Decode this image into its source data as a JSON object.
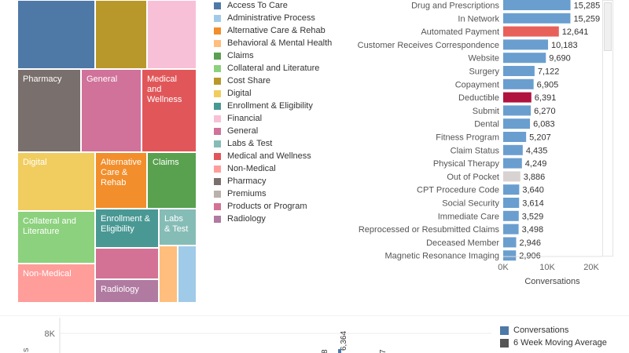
{
  "treemap": {
    "tiles": [
      {
        "label": "",
        "color": "#4e79a7"
      },
      {
        "label": "",
        "color": "#b9982b"
      },
      {
        "label": "",
        "color": "#f7c0d6"
      },
      {
        "label": "Pharmacy",
        "color": "#796f6c"
      },
      {
        "label": "General",
        "color": "#d0729a"
      },
      {
        "label": "Medical and Wellness",
        "color": "#e15759"
      },
      {
        "label": "Digital",
        "color": "#f1cd5f"
      },
      {
        "label": "Alternative Care & Rehab",
        "color": "#f28e2b"
      },
      {
        "label": "Claims",
        "color": "#59a14f"
      },
      {
        "label": "Collateral and Literature",
        "color": "#8cd17d"
      },
      {
        "label": "Enrollment & Eligibility",
        "color": "#499894"
      },
      {
        "label": "Labs & Test",
        "color": "#86bcb6"
      },
      {
        "label": "Non-Medical",
        "color": "#ff9d9a"
      },
      {
        "label": "",
        "color": "#d37295"
      },
      {
        "label": "Radiology",
        "color": "#b07aa1"
      },
      {
        "label": "",
        "color": "#ffbe7d"
      },
      {
        "label": "",
        "color": "#a0cbe8"
      }
    ]
  },
  "legend": {
    "items": [
      {
        "label": "Access To Care",
        "color": "#4e79a7"
      },
      {
        "label": "Administrative Process",
        "color": "#a0cbe8"
      },
      {
        "label": "Alternative Care & Rehab",
        "color": "#f28e2b"
      },
      {
        "label": "Behavioral & Mental Health",
        "color": "#ffbe7d"
      },
      {
        "label": "Claims",
        "color": "#59a14f"
      },
      {
        "label": "Collateral and Literature",
        "color": "#8cd17d"
      },
      {
        "label": "Cost Share",
        "color": "#b9982b"
      },
      {
        "label": "Digital",
        "color": "#f1cd5f"
      },
      {
        "label": "Enrollment & Eligibility",
        "color": "#499894"
      },
      {
        "label": "Financial",
        "color": "#f7c0d6"
      },
      {
        "label": "General",
        "color": "#d0729a"
      },
      {
        "label": "Labs & Test",
        "color": "#86bcb6"
      },
      {
        "label": "Medical and Wellness",
        "color": "#e15759"
      },
      {
        "label": "Non-Medical",
        "color": "#ff9d9a"
      },
      {
        "label": "Pharmacy",
        "color": "#796f6c"
      },
      {
        "label": "Premiums",
        "color": "#bab0ac"
      },
      {
        "label": "Products or Program",
        "color": "#d37295"
      },
      {
        "label": "Radiology",
        "color": "#b07aa1"
      }
    ]
  },
  "chart_data": [
    {
      "type": "bar",
      "orientation": "horizontal",
      "categories": [
        "Drug and Prescriptions",
        "In Network",
        "Automated Payment",
        "Customer Receives Correspondence",
        "Website",
        "Surgery",
        "Copayment",
        "Deductible",
        "Submit",
        "Dental",
        "Fitness Program",
        "Claim Status",
        "Physical Therapy",
        "Out of Pocket",
        "CPT Procedure Code",
        "Social Security",
        "Immediate Care",
        "Reprocessed or Resubmitted Claims",
        "Deceased Member",
        "Magnetic Resonance Imaging"
      ],
      "values": [
        15285,
        15259,
        12641,
        10183,
        9690,
        7122,
        6905,
        6391,
        6270,
        6083,
        5207,
        4435,
        4249,
        3886,
        3640,
        3614,
        3529,
        3498,
        2946,
        2906
      ],
      "value_labels": [
        "15,285",
        "15,259",
        "12,641",
        "10,183",
        "9,690",
        "7,122",
        "6,905",
        "6,391",
        "6,270",
        "6,083",
        "5,207",
        "4,435",
        "4,249",
        "3,886",
        "3,640",
        "3,614",
        "3,529",
        "3,498",
        "2,946",
        "2,906"
      ],
      "colors": [
        "#6a9ecf",
        "#6a9ecf",
        "#e8605a",
        "#6a9ecf",
        "#6a9ecf",
        "#6a9ecf",
        "#6a9ecf",
        "#b0143e",
        "#6a9ecf",
        "#6a9ecf",
        "#6a9ecf",
        "#6a9ecf",
        "#6a9ecf",
        "#d9d2d2",
        "#6a9ecf",
        "#6a9ecf",
        "#6a9ecf",
        "#6a9ecf",
        "#6a9ecf",
        "#6a9ecf"
      ],
      "xlim": [
        0,
        20000
      ],
      "xticks": [
        "0K",
        "10K",
        "20K"
      ],
      "xlabel": "Conversations"
    },
    {
      "type": "line",
      "ylabel": "s",
      "yticks": [
        "8K"
      ],
      "annotations": [
        "6,364",
        "8",
        "7"
      ],
      "legend": [
        {
          "label": "Conversations",
          "color": "#4e79a7"
        },
        {
          "label": "6 Week Moving Average",
          "color": "#555555"
        }
      ]
    }
  ]
}
